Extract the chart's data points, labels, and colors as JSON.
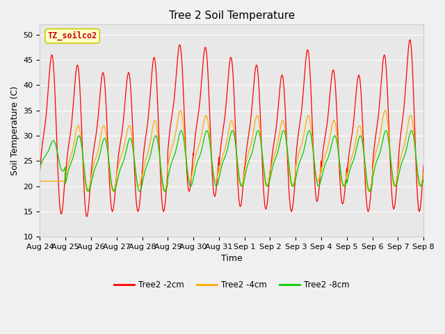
{
  "title": "Tree 2 Soil Temperature",
  "xlabel": "Time",
  "ylabel": "Soil Temperature (C)",
  "ylim": [
    10,
    52
  ],
  "yticks": [
    10,
    15,
    20,
    25,
    30,
    35,
    40,
    45,
    50
  ],
  "x_labels": [
    "Aug 24",
    "Aug 25",
    "Aug 26",
    "Aug 27",
    "Aug 28",
    "Aug 29",
    "Aug 30",
    "Aug 31",
    "Sep 1",
    "Sep 2",
    "Sep 3",
    "Sep 4",
    "Sep 5",
    "Sep 6",
    "Sep 7",
    "Sep 8"
  ],
  "annotation_text": "TZ_soilco2",
  "annotation_color": "#cc0000",
  "annotation_bg": "#ffffcc",
  "annotation_border": "#cccc00",
  "colors": {
    "Tree2 -2cm": "#ff0000",
    "Tree2 -4cm": "#ffaa00",
    "Tree2 -8cm": "#00cc00"
  },
  "bg_color": "#e8e8e8",
  "grid_color": "#ffffff",
  "title_fontsize": 11,
  "axis_fontsize": 9,
  "tick_fontsize": 8,
  "n_days": 15,
  "points_per_day": 144
}
